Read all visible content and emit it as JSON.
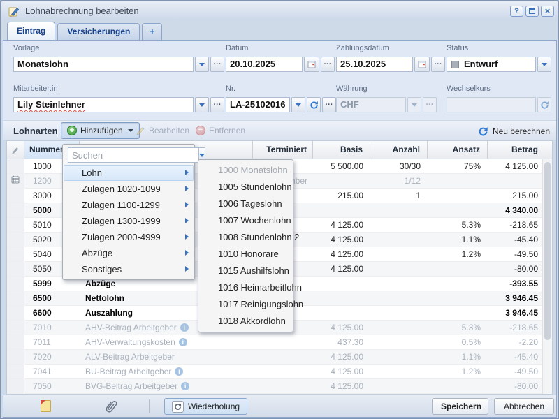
{
  "window": {
    "title": "Lohnabrechnung bearbeiten",
    "help_label": "?"
  },
  "tabs": {
    "eintrag": "Eintrag",
    "versicherungen": "Versicherungen",
    "add_tab": "+"
  },
  "form": {
    "vorlage": {
      "label": "Vorlage",
      "value": "Monatslohn"
    },
    "datum": {
      "label": "Datum",
      "value": "20.10.2025"
    },
    "zahlungsdatum": {
      "label": "Zahlungsdatum",
      "value": "25.10.2025"
    },
    "status": {
      "label": "Status",
      "value": "Entwurf"
    },
    "mitarbeiter": {
      "label": "Mitarbeiter:in",
      "value": "Lily Steinlehner"
    },
    "nr": {
      "label": "Nr.",
      "value": "LA-25102016"
    },
    "waehrung": {
      "label": "Währung",
      "value": "CHF"
    },
    "wechselkurs": {
      "label": "Wechselkurs",
      "value": ""
    }
  },
  "toolbar": {
    "section_label": "Lohnarten",
    "add_label": "Hinzufügen",
    "edit_label": "Bearbeiten",
    "remove_label": "Entfernen",
    "recalculate_label": "Neu berechnen"
  },
  "add_menu": {
    "search_placeholder": "Suchen",
    "items": [
      {
        "label": "Lohn",
        "highlighted": true
      },
      {
        "label": "Zulagen 1020-1099"
      },
      {
        "label": "Zulagen 1100-1299"
      },
      {
        "label": "Zulagen 1300-1999"
      },
      {
        "label": "Zulagen 2000-4999"
      },
      {
        "label": "Abzüge"
      },
      {
        "label": "Sonstiges"
      }
    ]
  },
  "submenu": {
    "items": [
      {
        "label": "1000 Monatslohn",
        "disabled": true
      },
      {
        "label": "1005 Stundenlohn"
      },
      {
        "label": "1006 Tageslohn"
      },
      {
        "label": "1007 Wochenlohn"
      },
      {
        "label": "1008 Stundenlohn 2"
      },
      {
        "label": "1010 Honorare"
      },
      {
        "label": "1015 Aushilfslohn"
      },
      {
        "label": "1016 Heimarbeitlohn"
      },
      {
        "label": "1017 Reinigungslohn"
      },
      {
        "label": "1018 Akkordlohn"
      }
    ]
  },
  "grid": {
    "columns": [
      "Nummer",
      "",
      "Terminiert",
      "Basis",
      "Anzahl",
      "Ansatz",
      "Betrag"
    ],
    "rows": [
      {
        "num": "1000",
        "desc": "",
        "terminiert": "",
        "basis": "5 500.00",
        "anzahl": "30/30",
        "ansatz": "75%",
        "betrag": "4 125.00",
        "style": "normal"
      },
      {
        "num": "1200",
        "desc": "",
        "terminiert": "Dezember",
        "basis": "",
        "anzahl": "1/12",
        "ansatz": "",
        "betrag": "",
        "style": "muted",
        "scheduled": true
      },
      {
        "num": "3000",
        "desc": "",
        "terminiert": "",
        "basis": "215.00",
        "anzahl": "1",
        "ansatz": "",
        "betrag": "215.00",
        "style": "normal"
      },
      {
        "num": "5000",
        "desc": "",
        "terminiert": "",
        "basis": "",
        "anzahl": "",
        "ansatz": "",
        "betrag": "4 340.00",
        "style": "bold"
      },
      {
        "num": "5010",
        "desc": "",
        "terminiert": "",
        "basis": "4 125.00",
        "anzahl": "",
        "ansatz": "5.3%",
        "betrag": "-218.65",
        "style": "normal"
      },
      {
        "num": "5020",
        "desc": "",
        "terminiert": "",
        "basis": "4 125.00",
        "anzahl": "",
        "ansatz": "1.1%",
        "betrag": "-45.40",
        "style": "normal"
      },
      {
        "num": "5040",
        "desc": "",
        "terminiert": "",
        "basis": "4 125.00",
        "anzahl": "",
        "ansatz": "1.2%",
        "betrag": "-49.50",
        "style": "normal"
      },
      {
        "num": "5050",
        "desc": "",
        "terminiert": "",
        "basis": "4 125.00",
        "anzahl": "",
        "ansatz": "",
        "betrag": "-80.00",
        "style": "normal"
      },
      {
        "num": "5999",
        "desc": "Abzüge",
        "terminiert": "",
        "basis": "",
        "anzahl": "",
        "ansatz": "",
        "betrag": "-393.55",
        "style": "bold"
      },
      {
        "num": "6500",
        "desc": "Nettolohn",
        "terminiert": "",
        "basis": "",
        "anzahl": "",
        "ansatz": "",
        "betrag": "3 946.45",
        "style": "bold"
      },
      {
        "num": "6600",
        "desc": "Auszahlung",
        "terminiert": "",
        "basis": "",
        "anzahl": "",
        "ansatz": "",
        "betrag": "3 946.45",
        "style": "bold"
      },
      {
        "num": "7010",
        "desc": "AHV-Beitrag Arbeitgeber",
        "info": true,
        "terminiert": "",
        "basis": "4 125.00",
        "anzahl": "",
        "ansatz": "5.3%",
        "betrag": "-218.65",
        "style": "muted"
      },
      {
        "num": "7011",
        "desc": "AHV-Verwaltungskosten",
        "info": true,
        "terminiert": "",
        "basis": "437.30",
        "anzahl": "",
        "ansatz": "0.5%",
        "betrag": "-2.20",
        "style": "muted"
      },
      {
        "num": "7020",
        "desc": "ALV-Beitrag Arbeitgeber",
        "terminiert": "",
        "basis": "4 125.00",
        "anzahl": "",
        "ansatz": "1.1%",
        "betrag": "-45.40",
        "style": "muted"
      },
      {
        "num": "7041",
        "desc": "BU-Beitrag Arbeitgeber",
        "info": true,
        "terminiert": "",
        "basis": "4 125.00",
        "anzahl": "",
        "ansatz": "1.2%",
        "betrag": "-49.50",
        "style": "muted"
      },
      {
        "num": "7050",
        "desc": "BVG-Beitrag Arbeitgeber",
        "info": true,
        "terminiert": "",
        "basis": "4 125.00",
        "anzahl": "",
        "ansatz": "",
        "betrag": "-80.00",
        "style": "muted"
      }
    ]
  },
  "footer": {
    "repeat_label": "Wiederholung",
    "save_label": "Speichern",
    "cancel_label": "Abbrechen"
  },
  "colors": {
    "accent_blue": "#15428b",
    "add_green": "#43a047",
    "remove_red": "#c64a4a",
    "menu_highlight": "#d6e7f9",
    "muted_text": "#a9b2bd"
  }
}
